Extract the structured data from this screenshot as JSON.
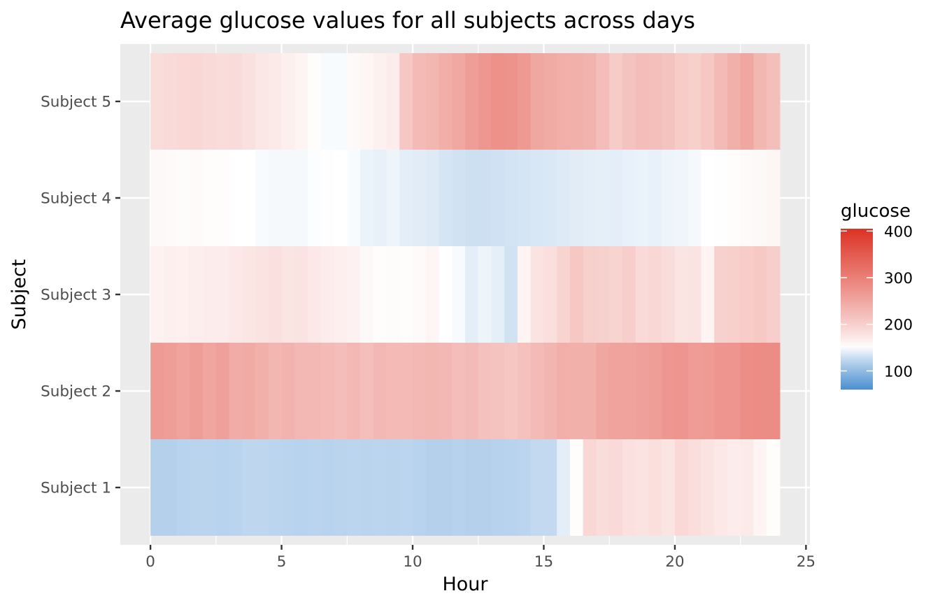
{
  "chart_data": {
    "type": "heatmap",
    "title": "Average glucose values for all subjects across days",
    "xlabel": "Hour",
    "ylabel": "Subject",
    "xlim": [
      -1.15,
      25.15
    ],
    "x_ticks": [
      0,
      5,
      10,
      15,
      20,
      25
    ],
    "x_tick_labels": [
      "0",
      "5",
      "10",
      "15",
      "20",
      "25"
    ],
    "grid": true,
    "legend_position": "right",
    "colors": {
      "panel_bg": "#ebebeb",
      "grid": "#ffffff",
      "low": "#4a8fd0",
      "mid": "#ffffff",
      "high": "#dd3224"
    },
    "legend": {
      "title": "glucose",
      "min": 60,
      "max": 405,
      "midpoint": 150,
      "breaks": [
        100,
        200,
        300,
        400
      ],
      "break_labels": [
        "100",
        "200",
        "300",
        "400"
      ]
    },
    "bin_hours": 0.5,
    "x_start": 0,
    "subjects": [
      "Subject 1",
      "Subject 2",
      "Subject 3",
      "Subject 4",
      "Subject 5"
    ],
    "series": [
      {
        "name": "Subject 1",
        "values": [
          118,
          118,
          120,
          121,
          121,
          120,
          121,
          123,
          123,
          122,
          121,
          120,
          121,
          120,
          121,
          122,
          121,
          122,
          121,
          122,
          120,
          118,
          118,
          119,
          118,
          118,
          119,
          120,
          122,
          125,
          125,
          140,
          152,
          192,
          185,
          188,
          180,
          178,
          182,
          176,
          190,
          183,
          178,
          172,
          168,
          170,
          160,
          152,
          148
        ]
      },
      {
        "name": "Subject 2",
        "values": [
          265,
          262,
          255,
          262,
          252,
          258,
          243,
          245,
          238,
          230,
          235,
          228,
          228,
          225,
          222,
          228,
          220,
          228,
          225,
          226,
          228,
          230,
          228,
          222,
          225,
          218,
          215,
          212,
          218,
          225,
          232,
          240,
          238,
          238,
          250,
          255,
          255,
          258,
          262,
          270,
          272,
          263,
          265,
          272,
          272,
          282,
          284,
          283,
          287
        ]
      },
      {
        "name": "Subject 3",
        "values": [
          162,
          165,
          164,
          166,
          168,
          168,
          172,
          175,
          178,
          180,
          176,
          178,
          172,
          168,
          165,
          162,
          155,
          152,
          153,
          152,
          154,
          158,
          150,
          148,
          140,
          144,
          141,
          132,
          160,
          178,
          182,
          195,
          210,
          200,
          198,
          195,
          202,
          188,
          192,
          185,
          176,
          178,
          160,
          198,
          200,
          204,
          208,
          202,
          210
        ]
      },
      {
        "name": "Subject 4",
        "values": [
          155,
          154,
          153,
          154,
          152,
          152,
          150,
          150,
          148,
          147,
          147,
          147,
          149,
          151,
          150,
          148,
          143,
          142,
          144,
          140,
          139,
          138,
          134,
          132,
          130,
          130,
          131,
          133,
          134,
          135,
          136,
          138,
          139,
          140,
          141,
          140,
          142,
          143,
          142,
          144,
          145,
          147,
          150,
          151,
          152,
          154,
          155,
          158,
          160
        ]
      },
      {
        "name": "Subject 5",
        "values": [
          185,
          188,
          190,
          192,
          188,
          185,
          186,
          180,
          174,
          170,
          165,
          160,
          152,
          148,
          148,
          155,
          158,
          163,
          168,
          210,
          225,
          230,
          240,
          248,
          262,
          270,
          278,
          275,
          268,
          250,
          245,
          240,
          238,
          235,
          222,
          205,
          215,
          222,
          220,
          215,
          205,
          200,
          210,
          225,
          238,
          250,
          230,
          220,
          210
        ]
      }
    ]
  }
}
